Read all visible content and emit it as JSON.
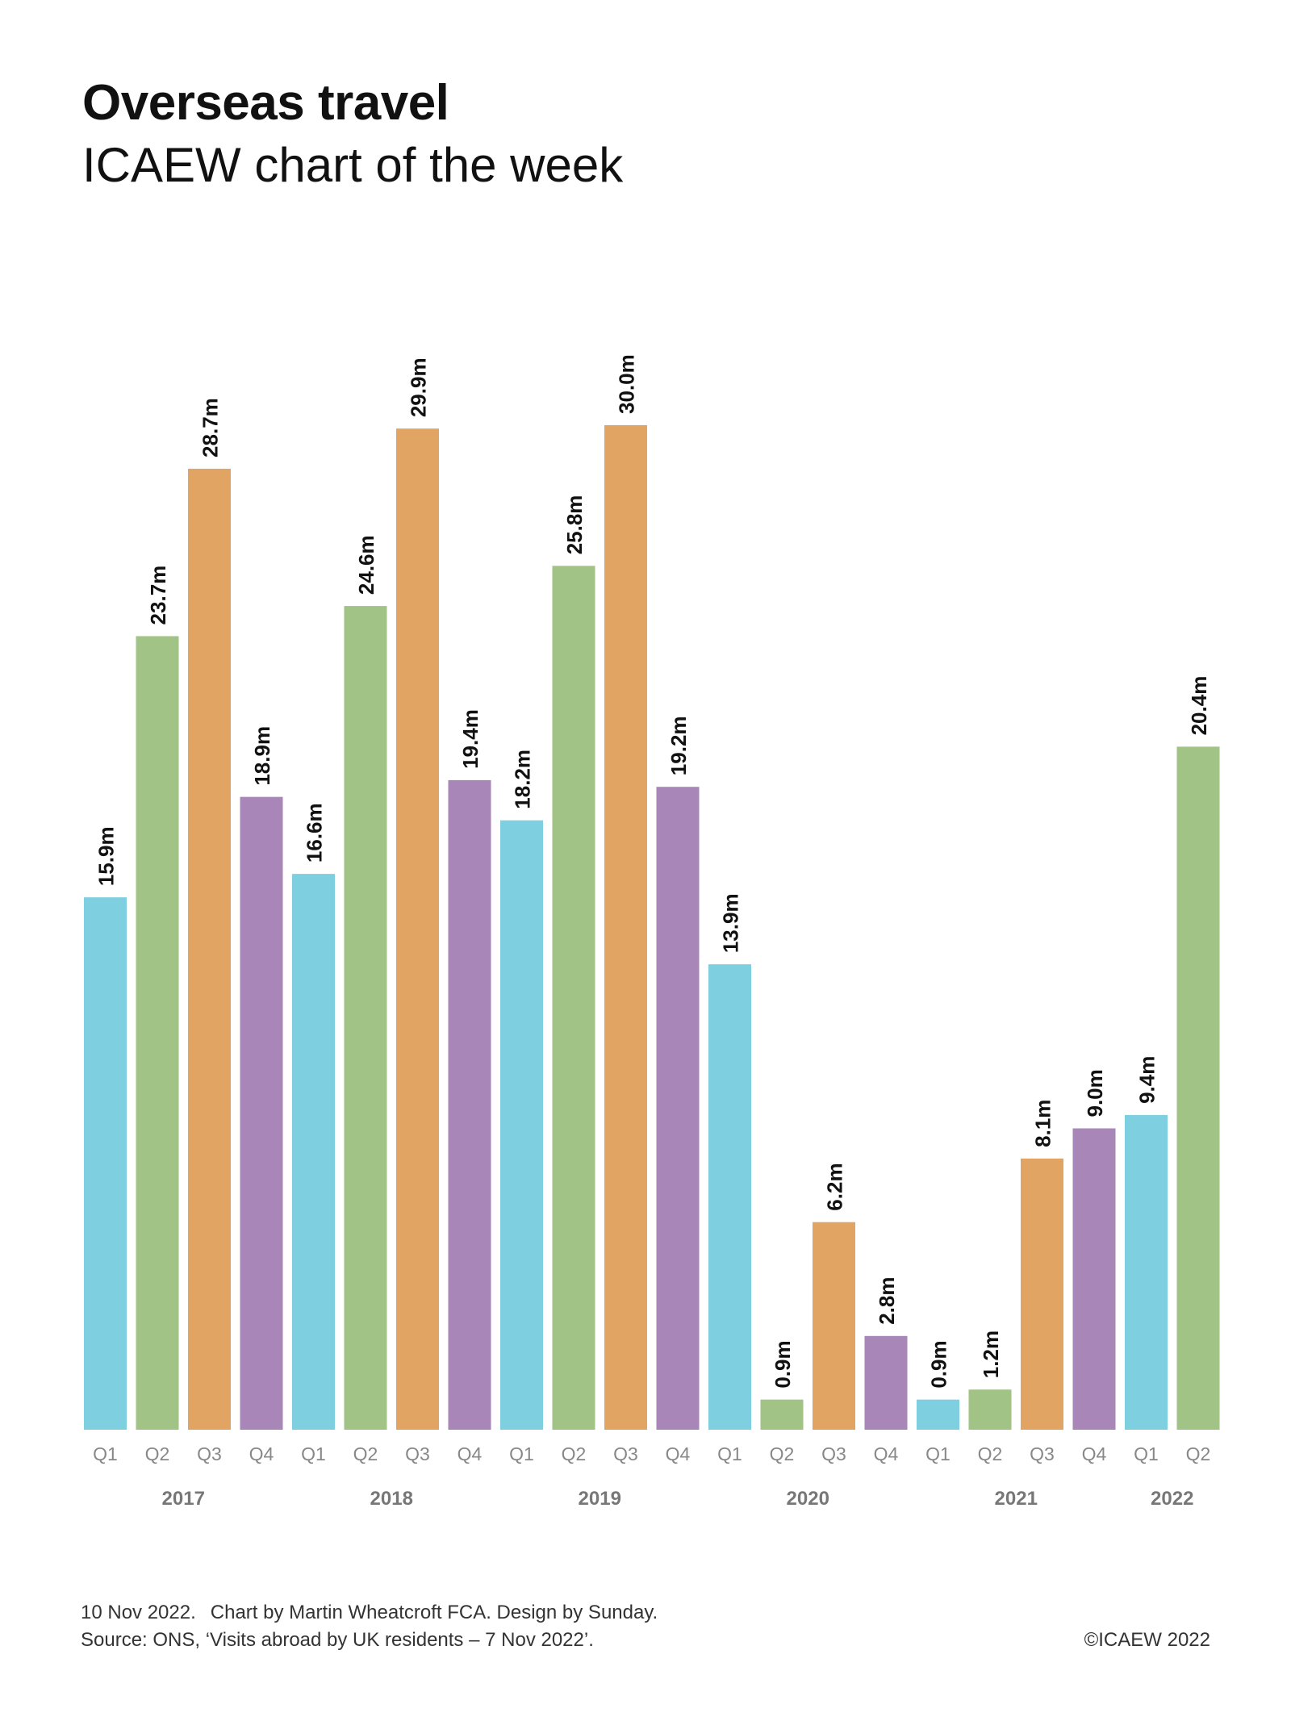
{
  "title": "Overseas travel",
  "subtitle": "ICAEW chart of the week",
  "footer": {
    "date": "10 Nov 2022.",
    "credit": "Chart by Martin Wheatcroft FCA. Design by Sunday.",
    "source": "Source: ONS, ‘Visits abroad by UK residents – 7 Nov 2022’.",
    "copyright": "©ICAEW 2022"
  },
  "colors": {
    "Q1": "#7ecfe0",
    "Q2": "#a1c386",
    "Q3": "#e1a463",
    "Q4": "#a886b8",
    "axis_text": "#888888",
    "year_text": "#777777"
  },
  "chart_data": {
    "type": "bar",
    "title": "Overseas travel",
    "subtitle": "ICAEW chart of the week",
    "xlabel": "",
    "ylabel": "",
    "ylim": [
      0,
      30
    ],
    "value_suffix": "m",
    "categories": [
      "Q1",
      "Q2",
      "Q3",
      "Q4",
      "Q1",
      "Q2",
      "Q3",
      "Q4",
      "Q1",
      "Q2",
      "Q3",
      "Q4",
      "Q1",
      "Q2",
      "Q3",
      "Q4",
      "Q1",
      "Q2",
      "Q3",
      "Q4",
      "Q1",
      "Q2"
    ],
    "years": [
      "2017",
      "2017",
      "2017",
      "2017",
      "2018",
      "2018",
      "2018",
      "2018",
      "2019",
      "2019",
      "2019",
      "2019",
      "2020",
      "2020",
      "2020",
      "2020",
      "2021",
      "2021",
      "2021",
      "2021",
      "2022",
      "2022"
    ],
    "year_labels": [
      "2017",
      "2018",
      "2019",
      "2020",
      "2021",
      "2022"
    ],
    "values": [
      15.9,
      23.7,
      28.7,
      18.9,
      16.6,
      24.6,
      29.9,
      19.4,
      18.2,
      25.8,
      30.0,
      19.2,
      13.9,
      0.9,
      6.2,
      2.8,
      0.9,
      1.2,
      8.1,
      9.0,
      9.4,
      20.4
    ],
    "labels": [
      "15.9m",
      "23.7m",
      "28.7m",
      "18.9m",
      "16.6m",
      "24.6m",
      "29.9m",
      "19.4m",
      "18.2m",
      "25.8m",
      "30.0m",
      "19.2m",
      "13.9m",
      "0.9m",
      "6.2m",
      "2.8m",
      "0.9m",
      "1.2m",
      "8.1m",
      "9.0m",
      "9.4m",
      "20.4m"
    ],
    "grid": false,
    "legend": "none"
  }
}
